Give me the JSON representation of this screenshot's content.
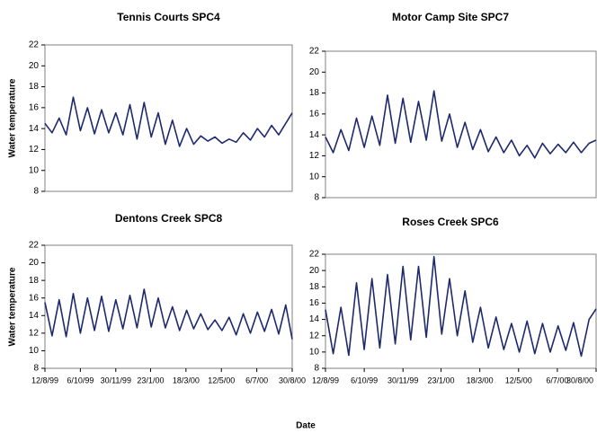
{
  "chart_data": [
    {
      "type": "line",
      "title": "Tennis Courts SPC4",
      "ylabel": "Water temperature",
      "color": "#1f2a6e",
      "x": [
        "12/8/99",
        "23/8/99",
        "3/9/99",
        "14/9/99",
        "25/9/99",
        "6/10/99",
        "17/10/99",
        "28/10/99",
        "8/11/99",
        "19/11/99",
        "30/11/99",
        "11/12/99",
        "22/12/99",
        "2/1/00",
        "13/1/00",
        "24/1/00",
        "4/2/00",
        "15/2/00",
        "26/2/00",
        "8/3/00",
        "19/3/00",
        "30/3/00",
        "10/4/00",
        "21/4/00",
        "2/5/00",
        "13/5/00",
        "24/5/00",
        "4/6/00",
        "15/6/00",
        "26/6/00",
        "7/7/00",
        "18/7/00",
        "29/7/00",
        "9/8/00",
        "20/8/00",
        "30/8/00"
      ],
      "values": [
        14.5,
        13.6,
        15,
        13.4,
        17,
        13.8,
        16,
        13.5,
        15.8,
        13.6,
        15.5,
        13.4,
        16.3,
        13,
        16.5,
        13.2,
        15.5,
        12.5,
        14.8,
        12.3,
        14,
        12.5,
        13.3,
        12.8,
        13.2,
        12.6,
        13,
        12.7,
        13.6,
        12.9,
        14,
        13.2,
        14.3,
        13.4,
        14.5,
        15.5
      ],
      "xlim": [
        "12/8/99",
        "30/8/00"
      ],
      "ylim": [
        8,
        22
      ],
      "yticks": [
        8,
        10,
        12,
        14,
        16,
        18,
        20,
        22
      ]
    },
    {
      "type": "line",
      "title": "Motor Camp Site SPC7",
      "color": "#1f2a6e",
      "x": [
        "12/8/99",
        "23/8/99",
        "3/9/99",
        "14/9/99",
        "25/9/99",
        "6/10/99",
        "17/10/99",
        "28/10/99",
        "8/11/99",
        "19/11/99",
        "30/11/99",
        "11/12/99",
        "22/12/99",
        "2/1/00",
        "13/1/00",
        "24/1/00",
        "4/2/00",
        "15/2/00",
        "26/2/00",
        "8/3/00",
        "19/3/00",
        "30/3/00",
        "10/4/00",
        "21/4/00",
        "2/5/00",
        "13/5/00",
        "24/5/00",
        "4/6/00",
        "15/6/00",
        "26/6/00",
        "7/7/00",
        "18/7/00",
        "29/7/00",
        "9/8/00",
        "20/8/00",
        "30/8/00"
      ],
      "values": [
        13.8,
        12.3,
        14.5,
        12.5,
        15.6,
        12.8,
        15.8,
        13,
        17.8,
        13.2,
        17.5,
        13.3,
        17.2,
        13.5,
        18.2,
        13.4,
        16,
        12.8,
        15.2,
        12.6,
        14.5,
        12.4,
        13.8,
        12.3,
        13.5,
        12,
        13,
        11.8,
        13.2,
        12.2,
        13.1,
        12.3,
        13.3,
        12.3,
        13.2,
        13.5
      ],
      "xlim": [
        "12/8/99",
        "30/8/00"
      ],
      "ylim": [
        8,
        22
      ],
      "yticks": [
        8,
        10,
        12,
        14,
        16,
        18,
        20,
        22
      ]
    },
    {
      "type": "line",
      "title": "Dentons Creek SPC8",
      "ylabel": "Water temperature",
      "color": "#1f2a6e",
      "x": [
        "12/8/99",
        "23/8/99",
        "3/9/99",
        "14/9/99",
        "25/9/99",
        "6/10/99",
        "17/10/99",
        "28/10/99",
        "8/11/99",
        "19/11/99",
        "30/11/99",
        "11/12/99",
        "22/12/99",
        "2/1/00",
        "13/1/00",
        "24/1/00",
        "4/2/00",
        "15/2/00",
        "26/2/00",
        "8/3/00",
        "19/3/00",
        "30/3/00",
        "10/4/00",
        "21/4/00",
        "2/5/00",
        "13/5/00",
        "24/5/00",
        "4/6/00",
        "15/6/00",
        "26/6/00",
        "7/7/00",
        "18/7/00",
        "29/7/00",
        "9/8/00",
        "20/8/00",
        "30/8/00"
      ],
      "values": [
        15.5,
        11.7,
        15.8,
        11.6,
        16.5,
        12,
        16,
        12.3,
        16.2,
        12.2,
        15.8,
        12.5,
        16.3,
        12.6,
        17,
        12.7,
        16,
        12.6,
        15,
        12.3,
        14.6,
        12.5,
        14.2,
        12.4,
        13.5,
        12.3,
        13.8,
        11.8,
        14.2,
        12,
        14.4,
        12.2,
        14.7,
        11.9,
        15.2,
        11.3
      ],
      "xlim": [
        "12/8/99",
        "30/8/00"
      ],
      "xticks": [
        "12/8/99",
        "6/10/99",
        "30/11/99",
        "23/1/00",
        "18/3/00",
        "12/5/00",
        "6/7/00",
        "30/8/00"
      ],
      "ylim": [
        8,
        22
      ],
      "yticks": [
        8,
        10,
        12,
        14,
        16,
        18,
        20,
        22
      ]
    },
    {
      "type": "line",
      "title": "Roses Creek SPC6",
      "color": "#1f2a6e",
      "x": [
        "12/8/99",
        "23/8/99",
        "3/9/99",
        "14/9/99",
        "25/9/99",
        "6/10/99",
        "17/10/99",
        "28/10/99",
        "8/11/99",
        "19/11/99",
        "30/11/99",
        "11/12/99",
        "22/12/99",
        "2/1/00",
        "13/1/00",
        "24/1/00",
        "4/2/00",
        "15/2/00",
        "26/2/00",
        "8/3/00",
        "19/3/00",
        "30/3/00",
        "10/4/00",
        "21/4/00",
        "2/5/00",
        "13/5/00",
        "24/5/00",
        "4/6/00",
        "15/6/00",
        "26/6/00",
        "7/7/00",
        "18/7/00",
        "29/7/00",
        "9/8/00",
        "20/8/00",
        "30/8/00"
      ],
      "values": [
        15.2,
        9.8,
        15.5,
        9.6,
        18.5,
        10.3,
        19,
        10.5,
        19.5,
        11,
        20.5,
        11.5,
        20.5,
        11.8,
        21.7,
        12.2,
        19,
        12,
        17.5,
        11.2,
        15.5,
        10.5,
        14.3,
        10.3,
        13.5,
        10,
        13.8,
        9.8,
        13.5,
        10,
        13.2,
        10.2,
        13.6,
        9.5,
        14,
        15.3
      ],
      "xlim": [
        "12/8/99",
        "30/8/00"
      ],
      "xticks": [
        "12/8/99",
        "6/10/99",
        "30/11/99",
        "23/1/00",
        "18/3/00",
        "12/5/00",
        "6/7/00",
        "30/8/00"
      ],
      "ylim": [
        8,
        22
      ],
      "yticks": [
        8,
        10,
        12,
        14,
        16,
        18,
        20,
        22
      ]
    }
  ],
  "figure": {
    "xlabel": "Date"
  }
}
